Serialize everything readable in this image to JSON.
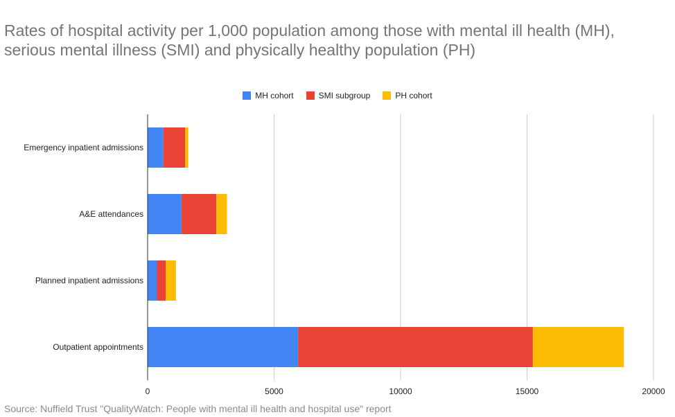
{
  "chart_data": {
    "type": "bar",
    "orientation": "horizontal",
    "stacked": true,
    "title": "Rates of hospital activity per 1,000 population among those with mental ill health (MH), serious mental illness (SMI) and physically healthy population (PH)",
    "categories": [
      "Emergency inpatient admissions",
      "A&E attendances",
      "Planned inpatient admissions",
      "Outpatient appointments"
    ],
    "series": [
      {
        "name": "MH cohort",
        "color": "#4285f4",
        "values": [
          620,
          1340,
          370,
          5950
        ]
      },
      {
        "name": "SMI subgroup",
        "color": "#ea4335",
        "values": [
          860,
          1380,
          350,
          9280
        ]
      },
      {
        "name": "PH cohort",
        "color": "#fbbc04",
        "values": [
          130,
          420,
          400,
          3600
        ]
      }
    ],
    "xlim": [
      0,
      20000
    ],
    "xticks": [
      0,
      5000,
      10000,
      15000,
      20000
    ],
    "xlabel": "",
    "ylabel": "",
    "grid": true,
    "legend_position": "top"
  },
  "source": "Source: Nuffield Trust \"QualityWatch: People with mental ill health and hospital use\" report"
}
